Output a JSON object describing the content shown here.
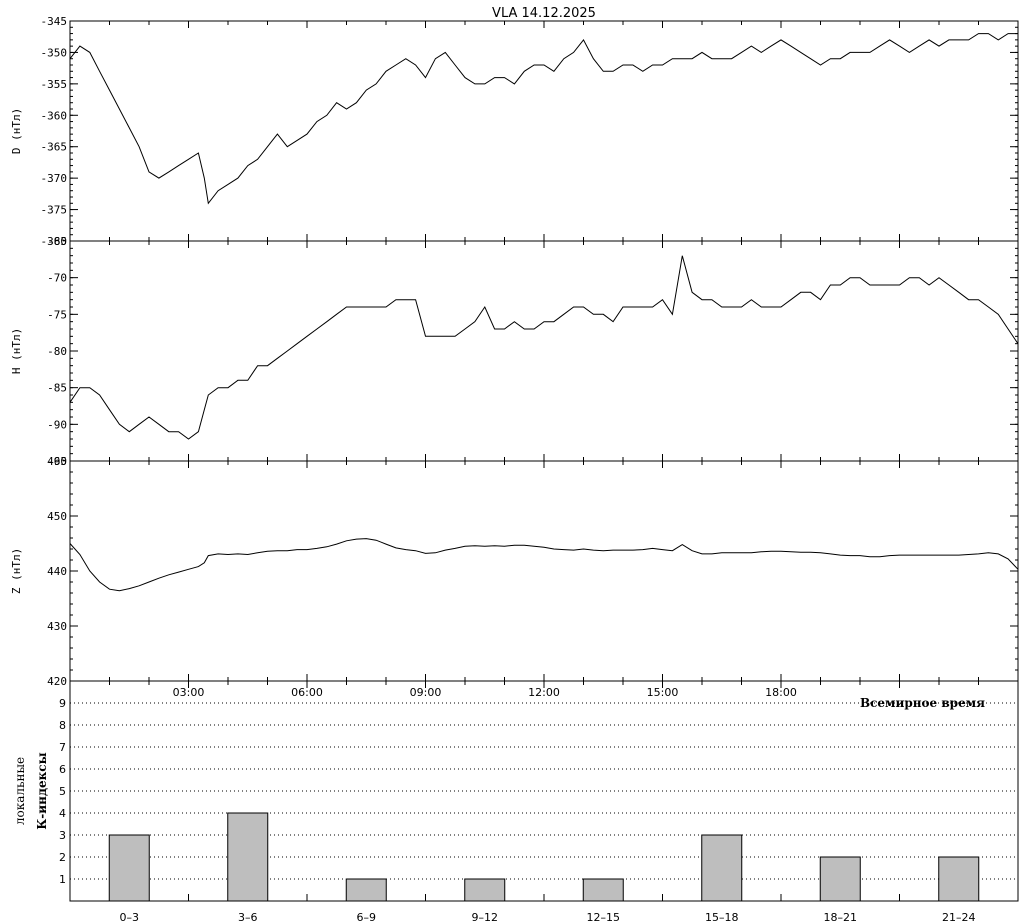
{
  "title": "VLA   14.12.2025",
  "xaxis_label": "Всемирное время",
  "chart_data": [
    {
      "type": "line",
      "ylabel": "D (нТл)",
      "xlim": [
        0,
        24
      ],
      "ylim": [
        -380,
        -345
      ],
      "yticks": [
        -345,
        -350,
        -355,
        -360,
        -365,
        -370,
        -375,
        -380
      ],
      "x": [
        0,
        0.25,
        0.5,
        0.75,
        1.0,
        1.25,
        1.5,
        1.75,
        2.0,
        2.25,
        2.5,
        2.75,
        3.0,
        3.25,
        3.4,
        3.5,
        3.75,
        4.0,
        4.25,
        4.5,
        4.75,
        5.0,
        5.25,
        5.5,
        5.75,
        6.0,
        6.25,
        6.5,
        6.75,
        7.0,
        7.25,
        7.5,
        7.75,
        8.0,
        8.25,
        8.5,
        8.75,
        9.0,
        9.25,
        9.5,
        9.75,
        10.0,
        10.25,
        10.5,
        10.75,
        11.0,
        11.25,
        11.5,
        11.75,
        12.0,
        12.25,
        12.5,
        12.75,
        13.0,
        13.25,
        13.5,
        13.75,
        14.0,
        14.25,
        14.5,
        14.75,
        15.0,
        15.25,
        15.5,
        15.75,
        16.0,
        16.25,
        16.5,
        16.75,
        17.0,
        17.25,
        17.5,
        17.75,
        18.0,
        18.25,
        18.5,
        18.75,
        19.0,
        19.25,
        19.5,
        19.75,
        20.0,
        20.25,
        20.5,
        20.75,
        21.0,
        21.25,
        21.5,
        21.75,
        22.0,
        22.25,
        22.5,
        22.75,
        23.0,
        23.25,
        23.5,
        23.75,
        24.0
      ],
      "y": [
        -351,
        -349,
        -350,
        -353,
        -356,
        -359,
        -362,
        -365,
        -369,
        -370,
        -369,
        -368,
        -367,
        -366,
        -370,
        -374,
        -372,
        -371,
        -370,
        -368,
        -367,
        -365,
        -363,
        -365,
        -364,
        -363,
        -361,
        -360,
        -358,
        -359,
        -358,
        -356,
        -355,
        -353,
        -352,
        -351,
        -352,
        -354,
        -351,
        -350,
        -352,
        -354,
        -355,
        -355,
        -354,
        -354,
        -355,
        -353,
        -352,
        -352,
        -353,
        -351,
        -350,
        -348,
        -351,
        -353,
        -353,
        -352,
        -352,
        -353,
        -352,
        -352,
        -351,
        -351,
        -351,
        -350,
        -351,
        -351,
        -351,
        -350,
        -349,
        -350,
        -349,
        -348,
        -349,
        -350,
        -351,
        -352,
        -351,
        -351,
        -350,
        -350,
        -350,
        -349,
        -348,
        -349,
        -350,
        -349,
        -348,
        -349,
        -348,
        -348,
        -348,
        -347,
        -347,
        -348,
        -347,
        -347
      ]
    },
    {
      "type": "line",
      "ylabel": "H (нТл)",
      "xlim": [
        0,
        24
      ],
      "ylim": [
        -95,
        -65
      ],
      "yticks": [
        -65,
        -70,
        -75,
        -80,
        -85,
        -90,
        -95
      ],
      "x": [
        0,
        0.25,
        0.5,
        0.75,
        1.0,
        1.25,
        1.5,
        1.75,
        2.0,
        2.25,
        2.5,
        2.75,
        3.0,
        3.25,
        3.4,
        3.5,
        3.75,
        4.0,
        4.25,
        4.5,
        4.75,
        5.0,
        5.25,
        5.5,
        5.75,
        6.0,
        6.25,
        6.5,
        6.75,
        7.0,
        7.25,
        7.5,
        7.75,
        8.0,
        8.25,
        8.5,
        8.75,
        9.0,
        9.25,
        9.5,
        9.75,
        10.0,
        10.25,
        10.5,
        10.75,
        11.0,
        11.25,
        11.5,
        11.75,
        12.0,
        12.25,
        12.5,
        12.75,
        13.0,
        13.25,
        13.5,
        13.75,
        14.0,
        14.25,
        14.5,
        14.75,
        15.0,
        15.25,
        15.5,
        15.75,
        16.0,
        16.25,
        16.5,
        16.75,
        17.0,
        17.25,
        17.5,
        17.75,
        18.0,
        18.25,
        18.5,
        18.75,
        19.0,
        19.25,
        19.5,
        19.75,
        20.0,
        20.25,
        20.5,
        20.75,
        21.0,
        21.25,
        21.5,
        21.75,
        22.0,
        22.25,
        22.5,
        22.75,
        23.0,
        23.25,
        23.5,
        23.75,
        24.0
      ],
      "y": [
        -87,
        -85,
        -85,
        -86,
        -88,
        -90,
        -91,
        -90,
        -89,
        -90,
        -91,
        -91,
        -92,
        -91,
        -88,
        -86,
        -85,
        -85,
        -84,
        -84,
        -82,
        -82,
        -81,
        -80,
        -79,
        -78,
        -77,
        -76,
        -75,
        -74,
        -74,
        -74,
        -74,
        -74,
        -73,
        -73,
        -73,
        -78,
        -78,
        -78,
        -78,
        -77,
        -76,
        -74,
        -77,
        -77,
        -76,
        -77,
        -77,
        -76,
        -76,
        -75,
        -74,
        -74,
        -75,
        -75,
        -76,
        -74,
        -74,
        -74,
        -74,
        -73,
        -75,
        -67,
        -72,
        -73,
        -73,
        -74,
        -74,
        -74,
        -73,
        -74,
        -74,
        -74,
        -73,
        -72,
        -72,
        -73,
        -71,
        -71,
        -70,
        -70,
        -71,
        -71,
        -71,
        -71,
        -70,
        -70,
        -71,
        -70,
        -71,
        -72,
        -73,
        -73,
        -74,
        -75,
        -77,
        -79
      ]
    },
    {
      "type": "line",
      "ylabel": "Z (нТл)",
      "xlim": [
        0,
        24
      ],
      "ylim": [
        420,
        460
      ],
      "yticks": [
        460,
        450,
        440,
        430,
        420
      ],
      "x": [
        0,
        0.25,
        0.5,
        0.75,
        1.0,
        1.25,
        1.5,
        1.75,
        2.0,
        2.25,
        2.5,
        2.75,
        3.0,
        3.25,
        3.4,
        3.5,
        3.75,
        4.0,
        4.25,
        4.5,
        4.75,
        5.0,
        5.25,
        5.5,
        5.75,
        6.0,
        6.25,
        6.5,
        6.75,
        7.0,
        7.25,
        7.5,
        7.75,
        8.0,
        8.25,
        8.5,
        8.75,
        9.0,
        9.25,
        9.5,
        9.75,
        10.0,
        10.25,
        10.5,
        10.75,
        11.0,
        11.25,
        11.5,
        11.75,
        12.0,
        12.25,
        12.5,
        12.75,
        13.0,
        13.25,
        13.5,
        13.75,
        14.0,
        14.25,
        14.5,
        14.75,
        15.0,
        15.25,
        15.5,
        15.75,
        16.0,
        16.25,
        16.5,
        16.75,
        17.0,
        17.25,
        17.5,
        17.75,
        18.0,
        18.25,
        18.5,
        18.75,
        19.0,
        19.25,
        19.5,
        19.75,
        20.0,
        20.25,
        20.5,
        20.75,
        21.0,
        21.25,
        21.5,
        21.75,
        22.0,
        22.25,
        22.5,
        22.75,
        23.0,
        23.25,
        23.5,
        23.75,
        24.0
      ],
      "y": [
        445,
        443,
        440,
        438,
        436.7,
        436.4,
        436.8,
        437.3,
        438.0,
        438.7,
        439.3,
        439.8,
        440.3,
        440.8,
        441.5,
        442.8,
        443.1,
        443.0,
        443.1,
        443.0,
        443.3,
        443.6,
        443.7,
        443.7,
        443.9,
        443.9,
        444.1,
        444.4,
        444.9,
        445.5,
        445.8,
        445.9,
        445.6,
        444.9,
        444.2,
        443.9,
        443.7,
        443.2,
        443.3,
        443.8,
        444.1,
        444.5,
        444.6,
        444.5,
        444.6,
        444.5,
        444.7,
        444.7,
        444.5,
        444.3,
        444.0,
        443.9,
        443.8,
        444.0,
        443.8,
        443.7,
        443.8,
        443.8,
        443.8,
        443.9,
        444.1,
        443.9,
        443.7,
        444.8,
        443.7,
        443.1,
        443.1,
        443.3,
        443.3,
        443.3,
        443.3,
        443.5,
        443.6,
        443.6,
        443.5,
        443.4,
        443.4,
        443.3,
        443.1,
        442.9,
        442.8,
        442.8,
        442.6,
        442.6,
        442.8,
        442.9,
        442.9,
        442.9,
        442.9,
        442.9,
        442.9,
        442.9,
        443.0,
        443.1,
        443.3,
        443.1,
        442.2,
        440.3
      ]
    },
    {
      "type": "bar",
      "ylabel": "локальные К-индексы",
      "categories": [
        "0–3",
        "3–6",
        "6–9",
        "9–12",
        "12–15",
        "15–18",
        "18–21",
        "21–24"
      ],
      "values": [
        3,
        4,
        1,
        1,
        1,
        3,
        2,
        2
      ],
      "ylim": [
        0,
        10
      ],
      "yticks": [
        1,
        2,
        3,
        4,
        5,
        6,
        7,
        8,
        9
      ],
      "grid": true
    }
  ],
  "time_ticks": [
    "03:00",
    "06:00",
    "09:00",
    "12:00",
    "15:00",
    "18:00"
  ],
  "colors": {
    "bar_fill": "#bebebe",
    "line": "#000000",
    "background": "#ffffff"
  }
}
